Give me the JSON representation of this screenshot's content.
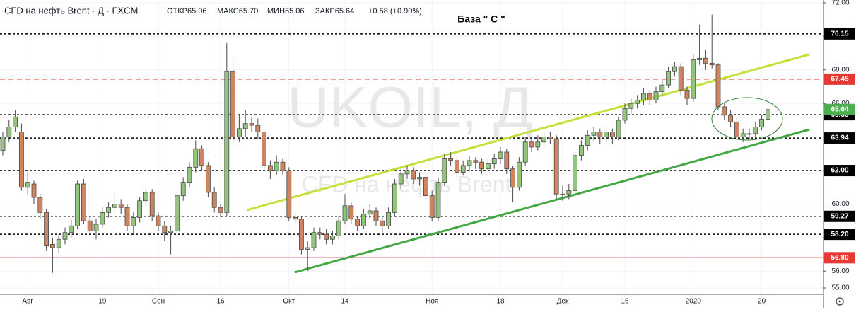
{
  "chart_data": {
    "type": "candlestick",
    "legend": {
      "symbol": "CFD на нефть Brent · Д · FXCM",
      "values": [
        "ОТКР65.06",
        "МАКС65.70",
        "МИН65.06",
        "ЗАКР65.64"
      ],
      "change": "+0.58 (+0.90%)"
    },
    "annotation": "База \" С \"",
    "watermark": [
      "UKOIL, Д",
      "CFD на нефть Brent"
    ],
    "up_color": "#93c47d",
    "down_color": "#d0845f",
    "last_color": "#4caf50",
    "ylim": [
      55,
      72
    ],
    "yticks": [
      {
        "value": 55,
        "label": "55.00"
      },
      {
        "value": 56,
        "label": "56.00"
      },
      {
        "value": 58,
        "label": "58.00"
      },
      {
        "value": 60,
        "label": "60.00"
      },
      {
        "value": 62,
        "label": "62.00"
      },
      {
        "value": 64,
        "label": "64.00"
      },
      {
        "value": 66,
        "label": "66.00"
      },
      {
        "value": 68,
        "label": "68.00"
      },
      {
        "value": 70,
        "label": "70.00"
      },
      {
        "value": 72,
        "label": "72.00"
      }
    ],
    "grid": true,
    "levels": [
      {
        "value": 70.15,
        "color": "#000000",
        "style": "dotted"
      },
      {
        "value": 67.45,
        "color": "#e53935",
        "style": "dashed"
      },
      {
        "value": 65.33,
        "color": "#000000",
        "style": "dotted"
      },
      {
        "value": 63.94,
        "color": "#000000",
        "style": "dotted"
      },
      {
        "value": 62,
        "label": "62.00",
        "color": "#000000",
        "style": "dotted"
      },
      {
        "value": 59.27,
        "color": "#000000",
        "style": "dotted"
      },
      {
        "value": 58.2,
        "label": "58.20",
        "color": "#000000",
        "style": "dotted"
      },
      {
        "value": 56.8,
        "label": "56.80",
        "color": "#e53935",
        "style": "solid"
      }
    ],
    "trendlines": [
      {
        "x": [
          39.3,
          129.7
        ],
        "y": [
          59.65,
          68.93
        ],
        "color": "#c6e03a"
      },
      {
        "x": [
          46.9,
          129.7
        ],
        "y": [
          55.93,
          64.45
        ],
        "color": "#43a843"
      }
    ],
    "categories": [
      null,
      null,
      null,
      null,
      "Авг",
      null,
      null,
      null,
      null,
      null,
      null,
      null,
      null,
      null,
      null,
      null,
      "19",
      null,
      null,
      null,
      null,
      null,
      null,
      null,
      null,
      "Сен",
      null,
      null,
      null,
      null,
      null,
      null,
      null,
      null,
      null,
      "16",
      null,
      null,
      null,
      null,
      null,
      null,
      null,
      null,
      null,
      null,
      "Окт",
      null,
      null,
      null,
      null,
      null,
      null,
      null,
      null,
      "14",
      null,
      null,
      null,
      null,
      null,
      null,
      null,
      null,
      null,
      null,
      null,
      null,
      null,
      "Ноя",
      null,
      null,
      null,
      null,
      null,
      null,
      null,
      null,
      null,
      null,
      "18",
      null,
      null,
      null,
      null,
      null,
      null,
      null,
      null,
      null,
      "Дек",
      null,
      null,
      null,
      null,
      null,
      null,
      null,
      null,
      null,
      "16",
      null,
      null,
      null,
      null,
      null,
      null,
      null,
      null,
      null,
      null,
      "2020",
      null,
      null,
      null,
      null,
      null,
      null,
      null,
      null,
      null,
      null,
      "20",
      null
    ],
    "candles": [
      [
        63.2,
        64.3,
        62.9,
        64.0
      ],
      [
        64.0,
        65.0,
        63.7,
        64.6
      ],
      [
        64.6,
        65.6,
        64.3,
        65.2
      ],
      [
        64.3,
        64.8,
        60.8,
        61.0
      ],
      [
        61.0,
        61.9,
        60.6,
        61.3
      ],
      [
        61.2,
        61.4,
        60.0,
        60.4
      ],
      [
        60.4,
        60.6,
        59.1,
        59.5
      ],
      [
        59.5,
        59.7,
        57.2,
        57.5
      ],
      [
        57.6,
        58.0,
        55.9,
        57.4
      ],
      [
        57.4,
        58.2,
        57.1,
        57.9
      ],
      [
        57.9,
        58.6,
        57.6,
        58.3
      ],
      [
        58.3,
        59.1,
        58.0,
        58.7
      ],
      [
        58.7,
        61.4,
        58.5,
        61.2
      ],
      [
        61.2,
        61.5,
        58.8,
        59.0
      ],
      [
        59.0,
        59.3,
        58.1,
        58.4
      ],
      [
        58.4,
        59.1,
        57.9,
        58.8
      ],
      [
        58.8,
        59.8,
        58.6,
        59.5
      ],
      [
        59.5,
        60.1,
        59.2,
        59.8
      ],
      [
        59.8,
        60.5,
        59.5,
        60.0
      ],
      [
        60.0,
        60.3,
        59.4,
        59.8
      ],
      [
        59.8,
        60.0,
        58.4,
        58.7
      ],
      [
        58.7,
        59.5,
        58.3,
        59.2
      ],
      [
        59.2,
        60.4,
        58.9,
        60.2
      ],
      [
        60.2,
        60.9,
        59.9,
        60.7
      ],
      [
        60.7,
        60.9,
        59.0,
        59.3
      ],
      [
        59.3,
        59.5,
        58.4,
        58.7
      ],
      [
        58.7,
        59.0,
        57.8,
        58.3
      ],
      [
        58.3,
        58.7,
        57.0,
        58.4
      ],
      [
        58.4,
        60.7,
        58.2,
        60.5
      ],
      [
        60.5,
        61.6,
        60.2,
        61.3
      ],
      [
        61.3,
        62.5,
        61.0,
        62.2
      ],
      [
        62.2,
        63.8,
        61.9,
        63.3
      ],
      [
        63.3,
        63.5,
        62.0,
        62.3
      ],
      [
        62.3,
        62.5,
        60.4,
        60.7
      ],
      [
        60.7,
        61.0,
        59.5,
        59.8
      ],
      [
        59.8,
        60.0,
        59.2,
        59.5
      ],
      [
        59.5,
        69.6,
        59.3,
        67.9
      ],
      [
        67.9,
        68.5,
        63.6,
        64.0
      ],
      [
        64.0,
        65.3,
        63.7,
        64.5
      ],
      [
        64.5,
        65.6,
        64.0,
        64.8
      ],
      [
        64.8,
        65.2,
        64.3,
        64.7
      ],
      [
        64.7,
        65.1,
        63.9,
        64.3
      ],
      [
        64.3,
        64.5,
        62.0,
        62.3
      ],
      [
        62.3,
        62.6,
        61.5,
        62.0
      ],
      [
        62.0,
        62.9,
        61.7,
        62.5
      ],
      [
        62.5,
        62.7,
        61.7,
        62.0
      ],
      [
        62.0,
        62.2,
        59.0,
        59.2
      ],
      [
        59.2,
        59.5,
        58.8,
        59.1
      ],
      [
        59.1,
        59.3,
        57.0,
        57.3
      ],
      [
        57.3,
        57.8,
        56.0,
        57.4
      ],
      [
        57.4,
        58.6,
        57.2,
        58.3
      ],
      [
        58.3,
        58.6,
        57.9,
        58.2
      ],
      [
        58.2,
        58.5,
        57.6,
        57.9
      ],
      [
        57.9,
        58.4,
        57.6,
        58.1
      ],
      [
        58.1,
        59.3,
        57.9,
        59.0
      ],
      [
        59.0,
        60.6,
        58.8,
        59.9
      ],
      [
        59.9,
        60.1,
        58.8,
        59.1
      ],
      [
        59.1,
        59.3,
        58.4,
        58.7
      ],
      [
        58.7,
        59.7,
        58.5,
        59.4
      ],
      [
        59.4,
        60.0,
        59.1,
        59.6
      ],
      [
        59.6,
        59.8,
        58.7,
        59.0
      ],
      [
        59.0,
        59.2,
        58.3,
        58.7
      ],
      [
        58.7,
        59.8,
        58.5,
        59.5
      ],
      [
        59.5,
        61.5,
        59.3,
        61.2
      ],
      [
        61.2,
        62.1,
        60.9,
        61.8
      ],
      [
        61.8,
        62.3,
        61.5,
        62.0
      ],
      [
        62.0,
        62.2,
        61.2,
        61.5
      ],
      [
        61.5,
        61.9,
        61.1,
        61.6
      ],
      [
        61.6,
        61.8,
        60.3,
        60.5
      ],
      [
        60.5,
        60.8,
        59.0,
        59.2
      ],
      [
        59.2,
        61.6,
        59.0,
        61.3
      ],
      [
        61.3,
        63.0,
        61.1,
        62.7
      ],
      [
        62.7,
        63.1,
        62.3,
        62.6
      ],
      [
        62.6,
        62.8,
        61.6,
        61.9
      ],
      [
        61.9,
        62.6,
        61.7,
        62.3
      ],
      [
        62.3,
        62.9,
        62.0,
        62.6
      ],
      [
        62.6,
        62.8,
        62.1,
        62.5
      ],
      [
        62.5,
        62.7,
        61.8,
        62.1
      ],
      [
        62.1,
        62.7,
        61.9,
        62.4
      ],
      [
        62.4,
        63.0,
        62.1,
        62.7
      ],
      [
        62.7,
        63.4,
        62.4,
        63.1
      ],
      [
        63.1,
        63.3,
        61.8,
        62.1
      ],
      [
        62.1,
        62.3,
        60.1,
        61.0
      ],
      [
        61.0,
        62.8,
        60.8,
        62.5
      ],
      [
        62.5,
        64.0,
        62.3,
        63.7
      ],
      [
        63.7,
        64.0,
        63.1,
        63.4
      ],
      [
        63.4,
        64.1,
        63.2,
        63.7
      ],
      [
        63.7,
        64.3,
        63.4,
        64.0
      ],
      [
        64.0,
        64.3,
        63.6,
        63.9
      ],
      [
        63.9,
        64.1,
        60.3,
        60.6
      ],
      [
        60.6,
        61.1,
        60.2,
        60.6
      ],
      [
        60.6,
        61.2,
        60.3,
        60.8
      ],
      [
        60.8,
        63.1,
        60.6,
        62.9
      ],
      [
        62.9,
        63.8,
        62.6,
        63.5
      ],
      [
        63.5,
        64.4,
        63.2,
        64.1
      ],
      [
        64.1,
        64.6,
        63.8,
        64.3
      ],
      [
        64.3,
        64.5,
        63.6,
        64.0
      ],
      [
        64.0,
        64.6,
        63.7,
        64.3
      ],
      [
        64.3,
        64.5,
        63.6,
        64.0
      ],
      [
        64.0,
        65.2,
        63.8,
        65.0
      ],
      [
        65.0,
        66.0,
        64.8,
        65.7
      ],
      [
        65.7,
        66.3,
        65.4,
        66.0
      ],
      [
        66.0,
        66.5,
        65.7,
        66.2
      ],
      [
        66.2,
        66.9,
        65.9,
        66.6
      ],
      [
        66.6,
        66.8,
        65.9,
        66.2
      ],
      [
        66.2,
        67.0,
        66.0,
        66.7
      ],
      [
        66.7,
        67.4,
        66.4,
        67.1
      ],
      [
        67.1,
        68.2,
        66.9,
        67.9
      ],
      [
        67.9,
        68.5,
        67.6,
        68.2
      ],
      [
        68.2,
        68.4,
        66.5,
        66.8
      ],
      [
        66.8,
        67.0,
        65.9,
        66.3
      ],
      [
        66.3,
        68.9,
        66.1,
        68.6
      ],
      [
        68.6,
        70.7,
        68.3,
        68.7
      ],
      [
        68.7,
        69.2,
        68.0,
        68.4
      ],
      [
        68.4,
        71.3,
        68.1,
        68.3
      ],
      [
        68.3,
        68.4,
        65.6,
        65.8
      ],
      [
        65.8,
        66.0,
        65.0,
        65.3
      ],
      [
        65.3,
        65.6,
        64.6,
        64.9
      ],
      [
        64.9,
        65.2,
        63.8,
        64.0
      ],
      [
        64.0,
        64.5,
        63.7,
        64.2
      ],
      [
        64.2,
        64.5,
        63.9,
        64.2
      ],
      [
        64.2,
        64.9,
        64.0,
        64.6
      ],
      [
        64.6,
        65.3,
        64.4,
        65.06
      ],
      [
        65.06,
        65.7,
        65.06,
        65.64
      ]
    ]
  }
}
